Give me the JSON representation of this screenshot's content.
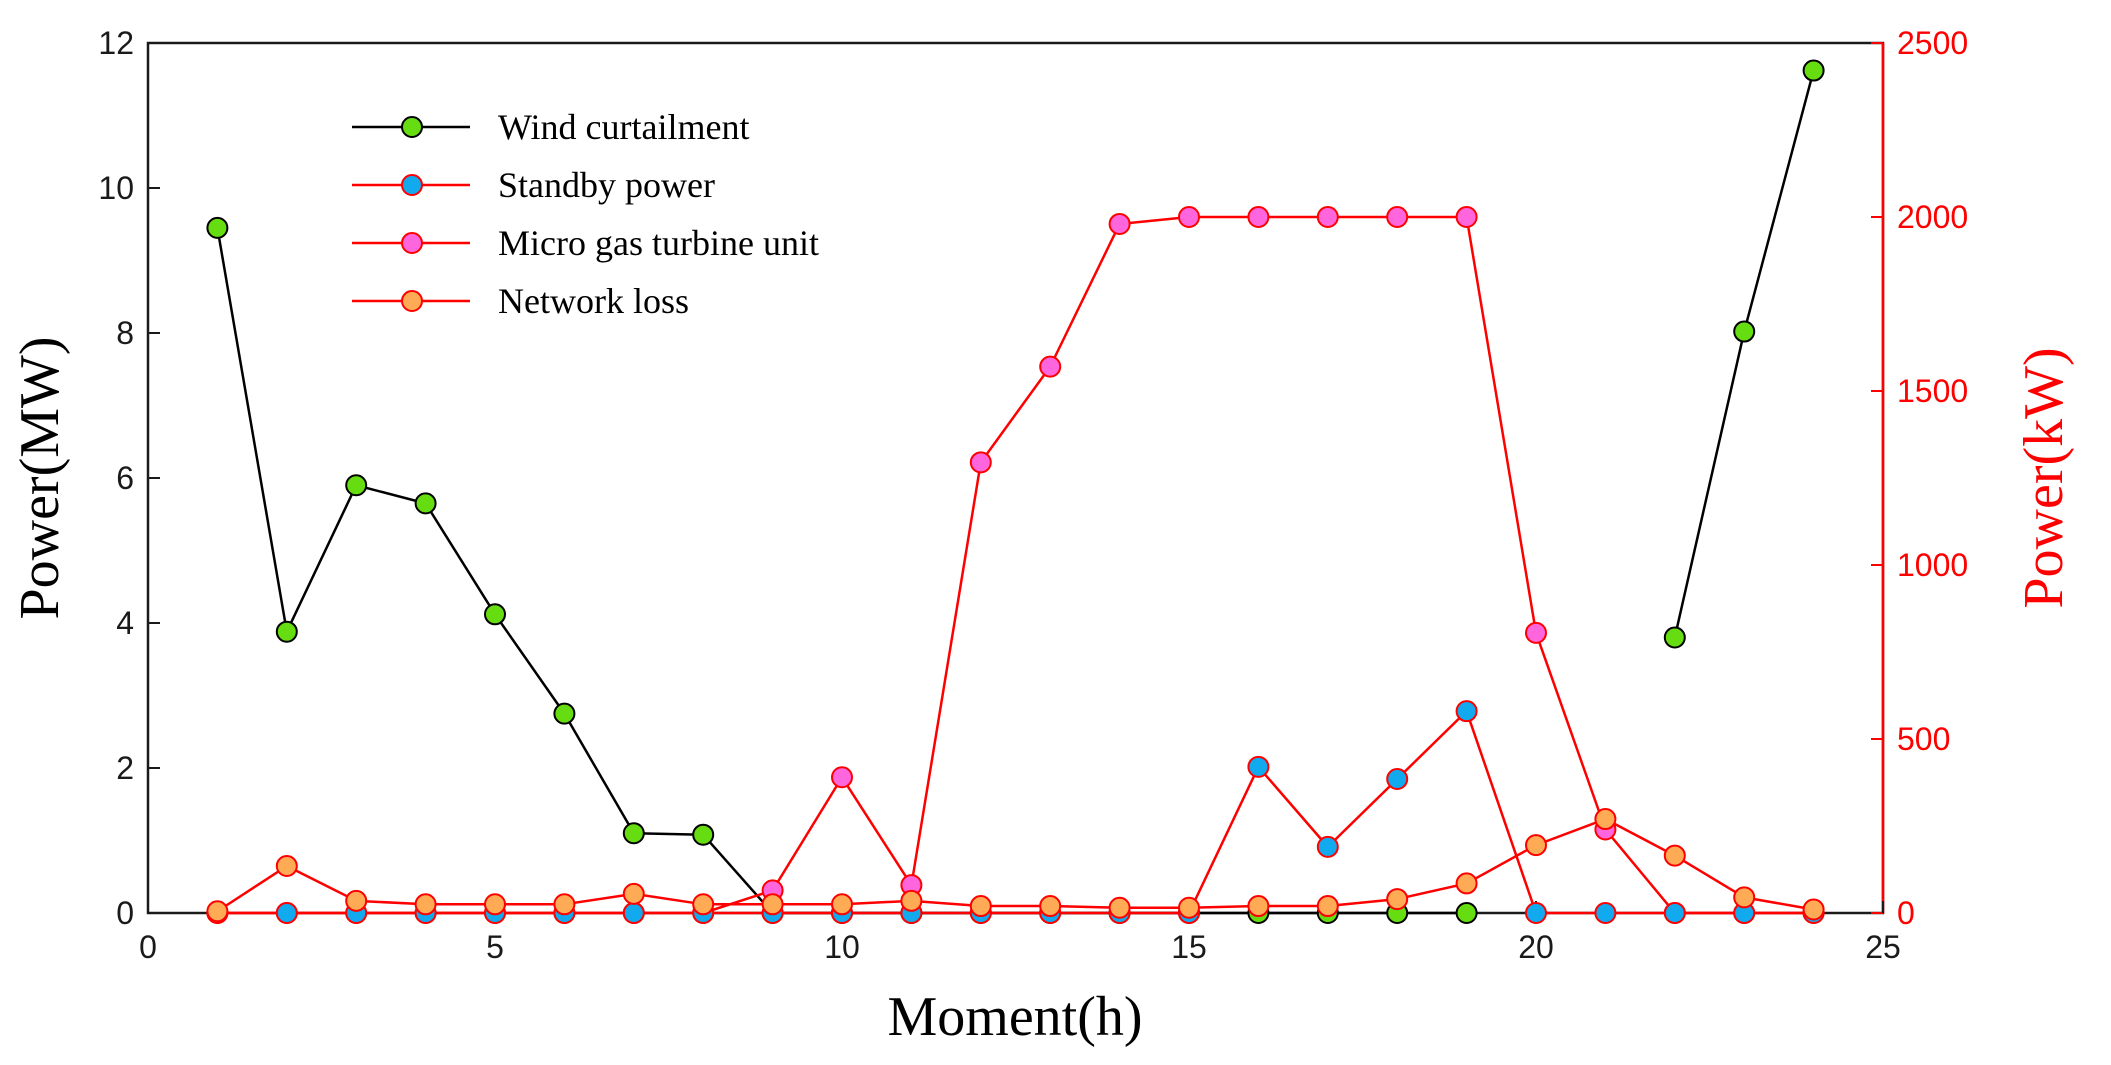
{
  "colors": {
    "left_axis": "#1a1a1a",
    "right_axis": "#ff0000",
    "wind_line": "#000000",
    "red_line": "#ff0000",
    "wind_marker": "#66dd11",
    "standby_marker": "#11aaee",
    "mgt_marker": "#ff66dd",
    "loss_marker": "#ffaa55"
  },
  "chart_data": {
    "type": "line",
    "title": "",
    "xlabel": "Moment(h)",
    "ylabel_left": "Power(MW)",
    "ylabel_right": "Power(kW)",
    "xlim": [
      0,
      25
    ],
    "ylim_left": [
      0,
      12
    ],
    "ylim_right": [
      0,
      2500
    ],
    "xticks": [
      "0",
      "5",
      "10",
      "15",
      "20",
      "25"
    ],
    "yticks_left": [
      "0",
      "2",
      "4",
      "6",
      "8",
      "10",
      "12"
    ],
    "yticks_right": [
      "0",
      "500",
      "1000",
      "1500",
      "2000",
      "2500"
    ],
    "grid": false,
    "legend_position": "top-left",
    "x": [
      1,
      2,
      3,
      4,
      5,
      6,
      7,
      8,
      9,
      10,
      11,
      12,
      13,
      14,
      15,
      16,
      17,
      18,
      19,
      20,
      21,
      22,
      23,
      24
    ],
    "series": [
      {
        "name": "Wind curtailment",
        "axis": "left",
        "line_color": "#000000",
        "marker_color": "#66dd11",
        "values": [
          9.45,
          3.88,
          5.9,
          5.65,
          4.12,
          2.75,
          1.1,
          1.08,
          0,
          0,
          0,
          0,
          0,
          0,
          0,
          0,
          0,
          0,
          0,
          null,
          null,
          3.8,
          8.02,
          11.62
        ]
      },
      {
        "name": "Standby power",
        "axis": "right",
        "line_color": "#ff0000",
        "marker_color": "#11aaee",
        "values": [
          0,
          0,
          0,
          0,
          0,
          0,
          0,
          0,
          0,
          0,
          0,
          0,
          0,
          0,
          0,
          420,
          190,
          385,
          580,
          0,
          0,
          0,
          0,
          0
        ]
      },
      {
        "name": "Micro gas turbine unit",
        "axis": "right",
        "line_color": "#ff0000",
        "marker_color": "#ff66dd",
        "values": [
          0,
          0,
          0,
          0,
          0,
          0,
          0,
          0,
          65,
          390,
          80,
          1295,
          1570,
          1980,
          2000,
          2000,
          2000,
          2000,
          2000,
          805,
          240,
          0,
          0,
          0
        ]
      },
      {
        "name": "Network loss",
        "axis": "right",
        "line_color": "#ff0000",
        "marker_color": "#ffaa55",
        "values": [
          5,
          135,
          35,
          25,
          25,
          25,
          55,
          25,
          25,
          25,
          35,
          20,
          20,
          15,
          15,
          20,
          20,
          40,
          85,
          195,
          270,
          165,
          45,
          10
        ]
      }
    ]
  }
}
